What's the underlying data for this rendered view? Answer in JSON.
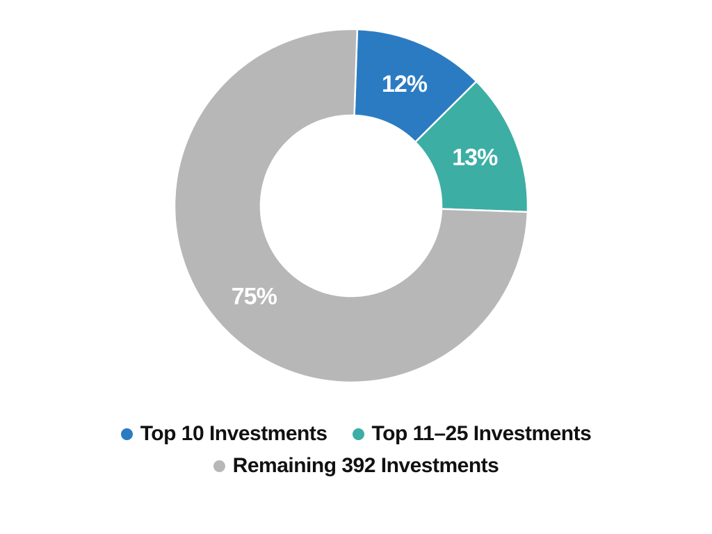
{
  "chart_data": {
    "type": "pie",
    "subtype": "donut",
    "direction": "clockwise",
    "start_angle_deg": 2,
    "donut_hole_ratio": 0.512,
    "background": "#ffffff",
    "separator_color": "#ffffff",
    "slice_label_color": "#ffffff",
    "legend_position": "bottom",
    "legend_text_color": "#111111",
    "series": [
      {
        "name": "Top 10 Investments",
        "value": 12,
        "display_label": "12%",
        "color": "#2B7BC2"
      },
      {
        "name": "Top 11–25 Investments",
        "value": 13,
        "display_label": "13%",
        "color": "#3CAEA4"
      },
      {
        "name": "Remaining 392 Investments",
        "value": 75,
        "display_label": "75%",
        "color": "#B7B7B7"
      }
    ]
  }
}
